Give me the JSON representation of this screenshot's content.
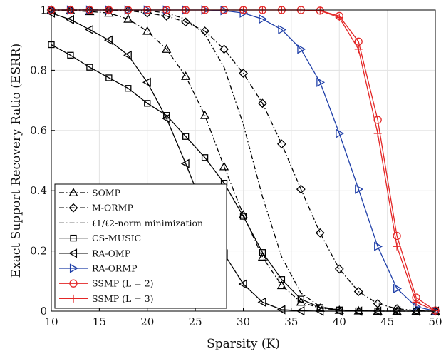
{
  "chart_data": {
    "type": "line",
    "xlabel": "Sparsity (K)",
    "ylabel": "Exact Support Recovery Ratio (ESRR)",
    "xlim": [
      10,
      50
    ],
    "ylim": [
      0,
      1
    ],
    "xticks": [
      10,
      15,
      20,
      25,
      30,
      35,
      40,
      45,
      50
    ],
    "yticks": [
      0,
      0.2,
      0.4,
      0.6,
      0.8,
      1
    ],
    "grid": true,
    "legend_position": "bottom-left",
    "series": [
      {
        "name": "SOMP",
        "color": "#000000",
        "dash": "dashdot",
        "marker": "triangle-up",
        "x": [
          10,
          12,
          14,
          16,
          18,
          20,
          22,
          24,
          26,
          28,
          30,
          32,
          34,
          36,
          38,
          40,
          42,
          44,
          46,
          48,
          50
        ],
        "y": [
          1.0,
          0.998,
          0.995,
          0.99,
          0.97,
          0.93,
          0.87,
          0.78,
          0.65,
          0.48,
          0.32,
          0.18,
          0.085,
          0.03,
          0.01,
          0.003,
          0.001,
          0,
          0,
          0,
          0
        ]
      },
      {
        "name": "M-ORMP",
        "color": "#000000",
        "dash": "dashdot",
        "marker": "diamond",
        "x": [
          10,
          12,
          14,
          16,
          18,
          20,
          22,
          24,
          26,
          28,
          30,
          32,
          34,
          36,
          38,
          40,
          42,
          44,
          46,
          48,
          50
        ],
        "y": [
          1.0,
          1.0,
          1.0,
          1.0,
          0.998,
          0.99,
          0.98,
          0.96,
          0.93,
          0.87,
          0.79,
          0.69,
          0.555,
          0.405,
          0.26,
          0.14,
          0.065,
          0.025,
          0.008,
          0.002,
          0
        ]
      },
      {
        "name": "ℓ1/ℓ2-norm minimization",
        "color": "#000000",
        "dash": "dashdot",
        "marker": "none",
        "x": [
          10,
          12,
          14,
          16,
          18,
          20,
          22,
          24,
          26,
          28,
          30,
          32,
          34,
          36,
          38,
          40,
          42,
          44,
          46,
          48,
          50
        ],
        "y": [
          1.0,
          1.0,
          1.0,
          1.0,
          1.0,
          0.998,
          0.99,
          0.97,
          0.92,
          0.81,
          0.62,
          0.38,
          0.18,
          0.06,
          0.015,
          0.004,
          0.001,
          0,
          0,
          0,
          0
        ]
      },
      {
        "name": "CS-MUSIC",
        "color": "#000000",
        "dash": "solid",
        "marker": "square",
        "x": [
          10,
          12,
          14,
          16,
          18,
          20,
          22,
          24,
          26,
          28,
          30,
          32,
          34,
          36,
          38,
          40,
          42,
          44,
          46,
          48,
          50
        ],
        "y": [
          0.885,
          0.85,
          0.81,
          0.775,
          0.74,
          0.69,
          0.65,
          0.58,
          0.51,
          0.425,
          0.315,
          0.195,
          0.105,
          0.04,
          0.012,
          0.004,
          0.001,
          0,
          0,
          0,
          0
        ]
      },
      {
        "name": "RA-OMP",
        "color": "#000000",
        "dash": "solid",
        "marker": "triangle-left",
        "x": [
          10,
          12,
          14,
          16,
          18,
          20,
          22,
          24,
          26,
          28,
          30,
          32,
          34,
          36,
          38,
          40,
          42,
          44,
          46,
          48,
          50
        ],
        "y": [
          0.99,
          0.968,
          0.935,
          0.9,
          0.85,
          0.76,
          0.64,
          0.49,
          0.33,
          0.19,
          0.09,
          0.03,
          0.005,
          0.001,
          0,
          0,
          0,
          0,
          0,
          0,
          0
        ]
      },
      {
        "name": "RA-ORMP",
        "color": "#1f3fa8",
        "dash": "solid",
        "marker": "triangle-right",
        "x": [
          10,
          12,
          14,
          16,
          18,
          20,
          22,
          24,
          26,
          28,
          30,
          32,
          34,
          36,
          38,
          40,
          42,
          44,
          46,
          48,
          50
        ],
        "y": [
          1.0,
          1.0,
          1.0,
          1.0,
          1.0,
          1.0,
          1.0,
          1.0,
          1.0,
          0.998,
          0.99,
          0.97,
          0.935,
          0.87,
          0.76,
          0.59,
          0.405,
          0.215,
          0.075,
          0.015,
          0
        ]
      },
      {
        "name": "SSMP (L = 2)",
        "color": "#e32626",
        "dash": "solid",
        "marker": "circle",
        "x": [
          10,
          12,
          14,
          16,
          18,
          20,
          22,
          24,
          26,
          28,
          30,
          32,
          34,
          36,
          38,
          40,
          42,
          44,
          46,
          48,
          50
        ],
        "y": [
          1.0,
          1.0,
          1.0,
          1.0,
          1.0,
          1.0,
          1.0,
          1.0,
          1.0,
          1.0,
          1.0,
          1.0,
          1.0,
          1.0,
          0.998,
          0.98,
          0.895,
          0.635,
          0.25,
          0.045,
          0.002
        ]
      },
      {
        "name": "SSMP (L = 3)",
        "color": "#e32626",
        "dash": "solid",
        "marker": "plus",
        "x": [
          10,
          12,
          14,
          16,
          18,
          20,
          22,
          24,
          26,
          28,
          30,
          32,
          34,
          36,
          38,
          40,
          42,
          44,
          46,
          48,
          50
        ],
        "y": [
          1.0,
          1.0,
          1.0,
          1.0,
          1.0,
          1.0,
          1.0,
          1.0,
          1.0,
          1.0,
          1.0,
          1.0,
          1.0,
          1.0,
          0.998,
          0.975,
          0.87,
          0.59,
          0.215,
          0.03,
          0.001
        ]
      }
    ]
  }
}
